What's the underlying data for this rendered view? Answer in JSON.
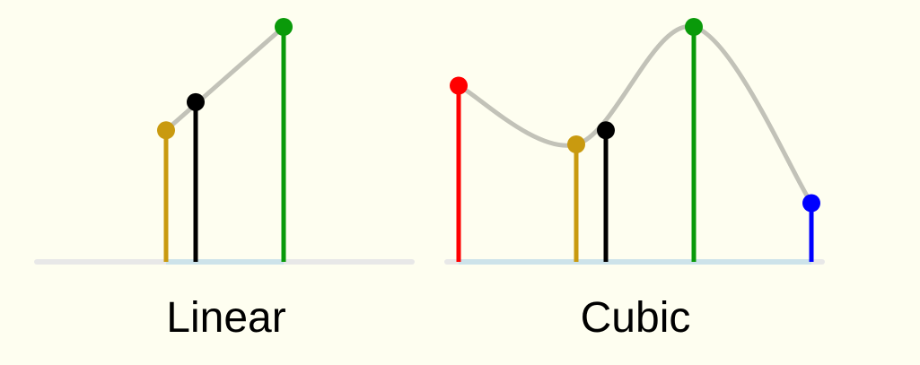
{
  "panels": [
    {
      "id": "linear",
      "label": "Linear",
      "points": [
        {
          "role": "p1",
          "color": "#c99a0f",
          "value": 0.56
        },
        {
          "role": "sample",
          "color": "#000000",
          "value": 0.68
        },
        {
          "role": "p2",
          "color": "#0a9a0a",
          "value": 1.0
        }
      ]
    },
    {
      "id": "cubic",
      "label": "Cubic",
      "points": [
        {
          "role": "p0",
          "color": "#ff0000",
          "value": 0.75
        },
        {
          "role": "p1",
          "color": "#c99a0f",
          "value": 0.5
        },
        {
          "role": "sample",
          "color": "#000000",
          "value": 0.56
        },
        {
          "role": "p2",
          "color": "#0a9a0a",
          "value": 1.0
        },
        {
          "role": "p3",
          "color": "#0000ff",
          "value": 0.25
        }
      ]
    }
  ]
}
